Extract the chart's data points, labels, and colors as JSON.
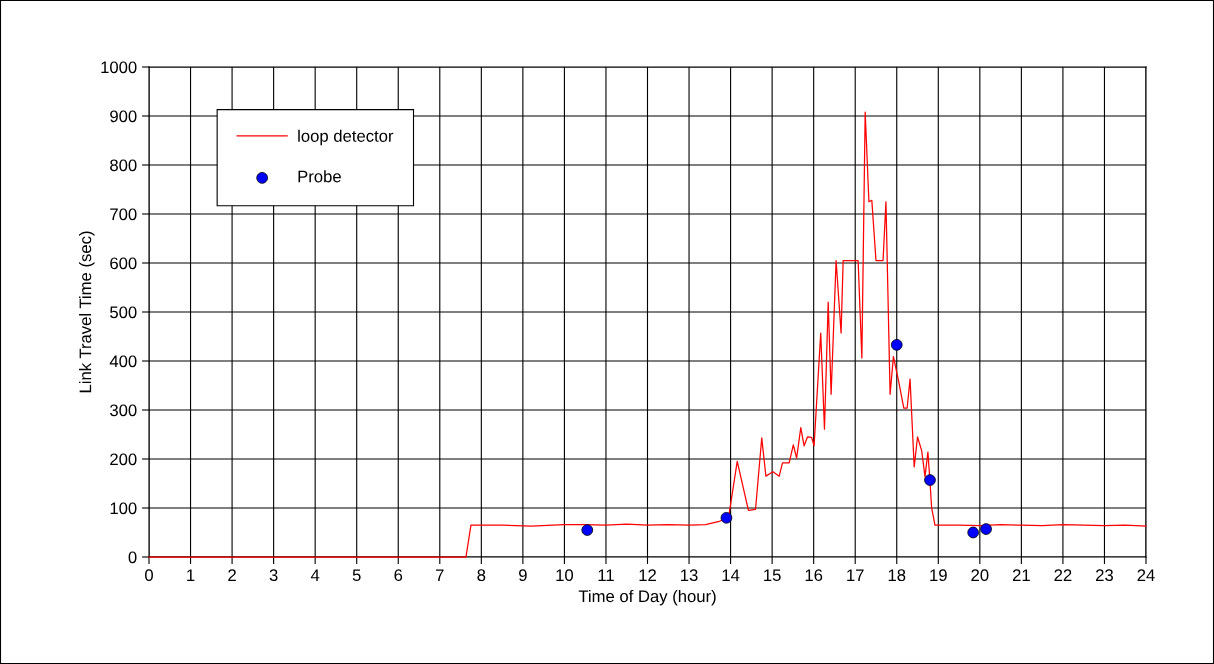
{
  "chart_data": {
    "type": "line",
    "xlabel": "Time of Day (hour)",
    "ylabel": "Link Travel Time (sec)",
    "xlim": [
      0,
      24
    ],
    "xticks": [
      0,
      1,
      2,
      3,
      4,
      5,
      6,
      7,
      8,
      9,
      10,
      11,
      12,
      13,
      14,
      15,
      16,
      17,
      18,
      19,
      20,
      21,
      22,
      23,
      24
    ],
    "ylim": [
      0,
      1000
    ],
    "yticks": [
      0,
      100,
      200,
      300,
      400,
      500,
      600,
      700,
      800,
      900,
      1000
    ],
    "grid": true,
    "legend": "top left",
    "series": [
      {
        "name": "loop detector",
        "color": "#ff0000",
        "marker": "none",
        "line_style": "solid",
        "x": [
          0,
          7.63,
          7.75,
          8.5,
          9.2,
          10,
          10.5,
          11,
          11.5,
          12,
          12.5,
          13,
          13.4,
          13.7,
          13.95,
          14.16,
          14.43,
          14.6,
          14.75,
          14.85,
          15.02,
          15.17,
          15.25,
          15.41,
          15.51,
          15.59,
          15.69,
          15.77,
          15.85,
          15.95,
          16.01,
          16.17,
          16.26,
          16.35,
          16.42,
          16.54,
          16.66,
          16.71,
          16.75,
          17.07,
          17.16,
          17.24,
          17.33,
          17.4,
          17.5,
          17.67,
          17.74,
          17.84,
          17.92,
          18.04,
          18.17,
          18.25,
          18.32,
          18.42,
          18.5,
          18.6,
          18.68,
          18.75,
          18.8,
          18.84,
          18.92,
          19.5,
          20,
          20.5,
          21,
          21.5,
          22,
          22.5,
          23,
          23.5,
          24
        ],
        "values": [
          0,
          0,
          65,
          65,
          63,
          66,
          66,
          65,
          67,
          65,
          66,
          65,
          66,
          72,
          80,
          195,
          95,
          97,
          243,
          165,
          174,
          165,
          192,
          192,
          229,
          202,
          264,
          227,
          245,
          244,
          227,
          457,
          261,
          520,
          332,
          605,
          457,
          605,
          605,
          605,
          406,
          908,
          725,
          728,
          605,
          605,
          725,
          332,
          409,
          361,
          304,
          304,
          363,
          184,
          245,
          217,
          164,
          214,
          154,
          100,
          65,
          65,
          64,
          66,
          65,
          64,
          66,
          65,
          64,
          65,
          63
        ]
      },
      {
        "name": "Probe",
        "type": "scatter",
        "color": "#0000ff",
        "marker": "circle",
        "x": [
          10.55,
          13.9,
          18.0,
          18.8,
          19.84,
          20.15
        ],
        "values": [
          55,
          80,
          433,
          157,
          50,
          57
        ]
      }
    ]
  }
}
